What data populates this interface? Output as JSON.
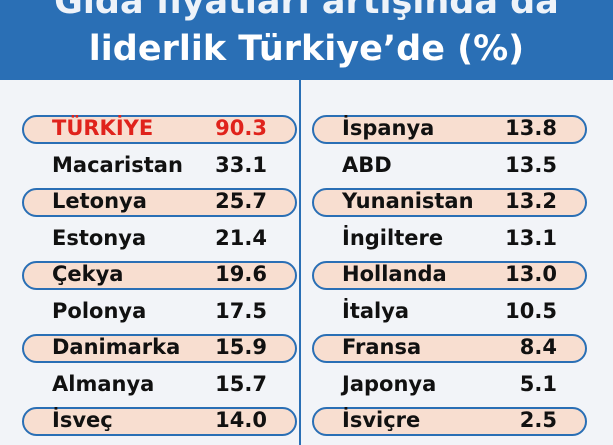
{
  "title": "Gıda fiyatları artışında da liderlik Türkiye'de (%)",
  "title_line1": "Gıda fiyatları artışında da",
  "title_line2": "liderlik Türkiye’de (%)",
  "colors": {
    "header": "#2a6fb5",
    "pill_fill": "#f8ded0",
    "pill_border": "#2a6fb5",
    "highlight_text": "#e0231c"
  },
  "chart_data": {
    "type": "table",
    "title": "Gıda fiyatları artışında da liderlik Türkiye’de (%)",
    "columns": [
      {
        "rows": [
          {
            "country": "TÜRKİYE",
            "value": 90.3,
            "highlight": true
          },
          {
            "country": "Macaristan",
            "value": 33.1
          },
          {
            "country": "Letonya",
            "value": 25.7
          },
          {
            "country": "Estonya",
            "value": 21.4
          },
          {
            "country": "Çekya",
            "value": 19.6
          },
          {
            "country": "Polonya",
            "value": 17.5
          },
          {
            "country": "Danimarka",
            "value": 15.9
          },
          {
            "country": "Almanya",
            "value": 15.7
          },
          {
            "country": "İsveç",
            "value": 14.0
          }
        ]
      },
      {
        "rows": [
          {
            "country": "İspanya",
            "value": 13.8
          },
          {
            "country": "ABD",
            "value": 13.5
          },
          {
            "country": "Yunanistan",
            "value": 13.2
          },
          {
            "country": "İngiltere",
            "value": 13.1
          },
          {
            "country": "Hollanda",
            "value": 13.0
          },
          {
            "country": "İtalya",
            "value": 10.5
          },
          {
            "country": "Fransa",
            "value": 8.4
          },
          {
            "country": "Japonya",
            "value": 5.1
          },
          {
            "country": "İsviçre",
            "value": 2.5
          }
        ]
      }
    ]
  }
}
